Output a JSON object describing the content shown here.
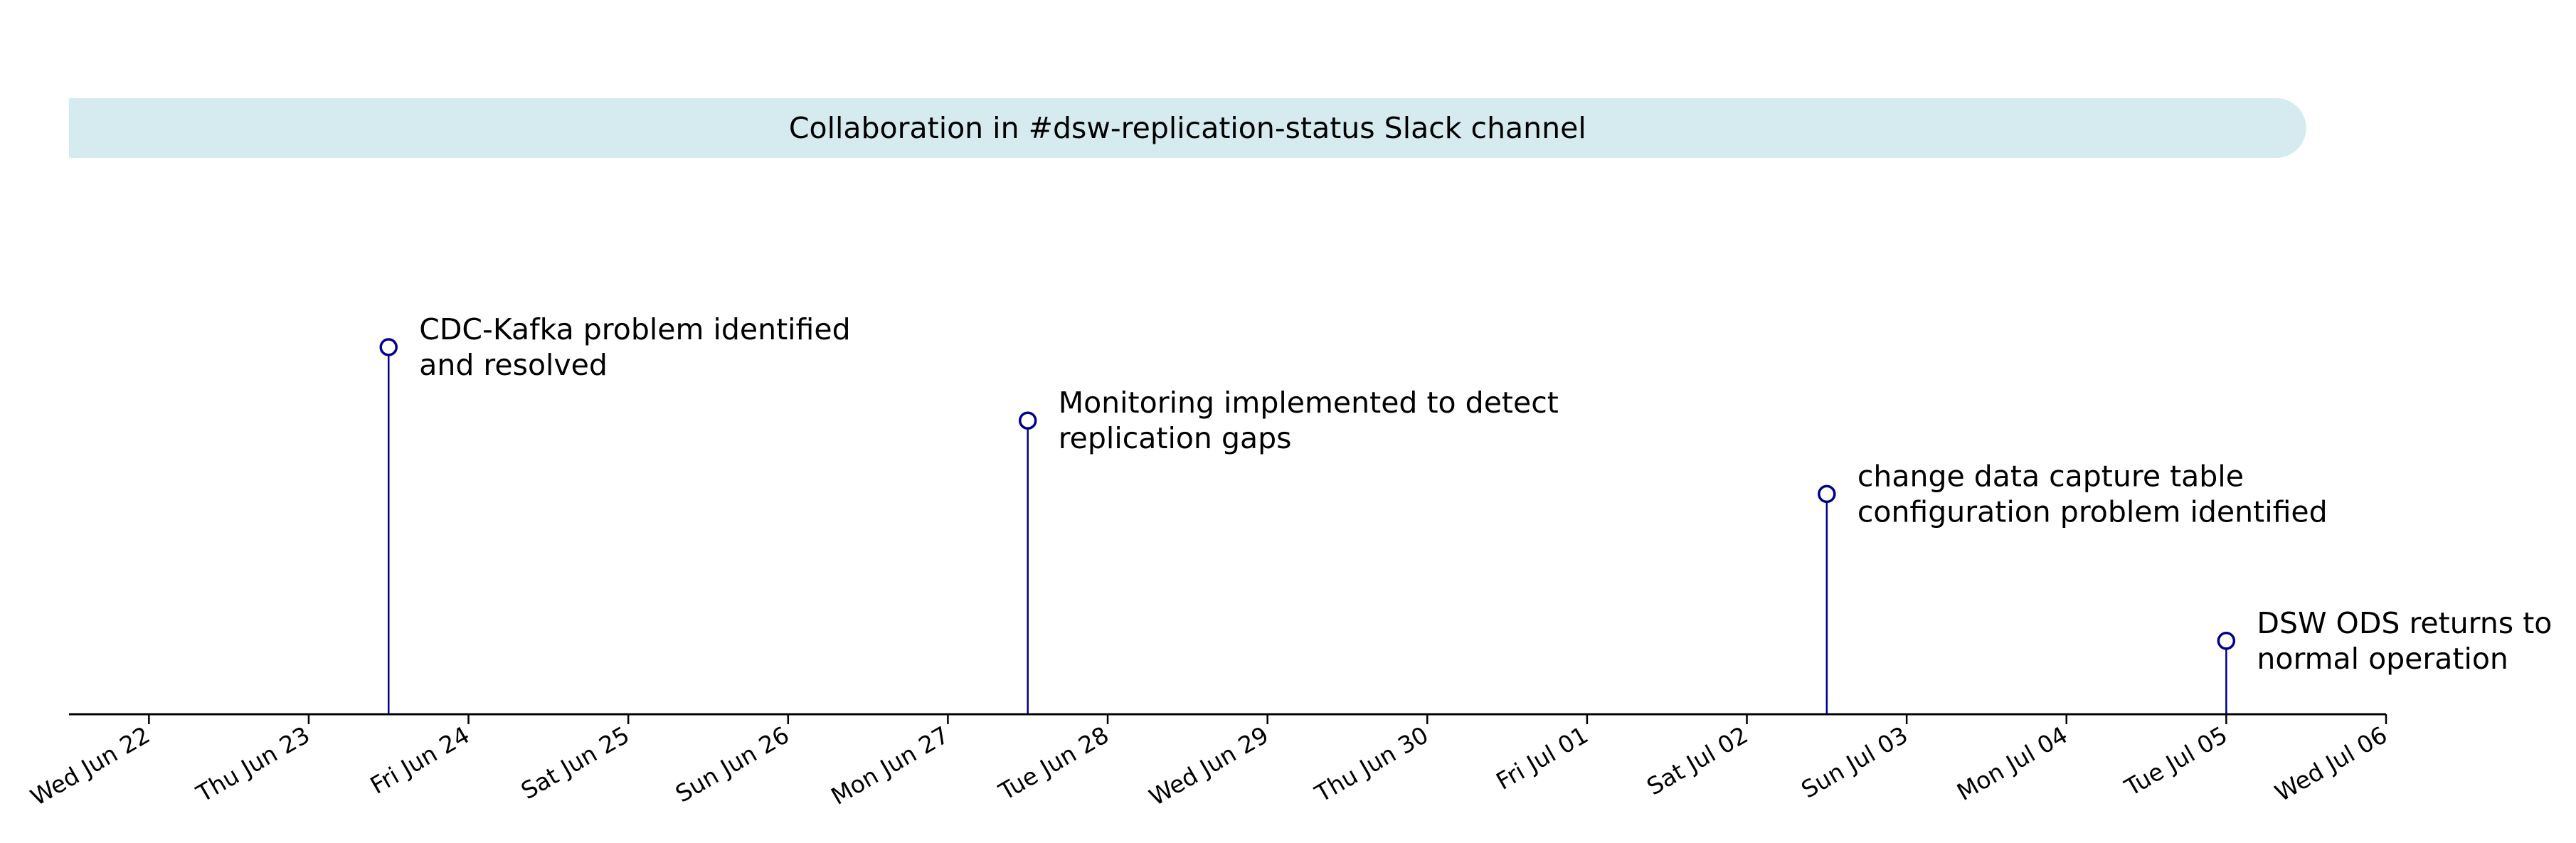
{
  "chart_data": {
    "type": "timeline",
    "x_ticks": [
      "Wed Jun 22",
      "Thu Jun 23",
      "Fri Jun 24",
      "Sat Jun 25",
      "Sun Jun 26",
      "Mon Jun 27",
      "Tue Jun 28",
      "Wed Jun 29",
      "Thu Jun 30",
      "Fri Jul 01",
      "Sat Jul 02",
      "Sun Jul 03",
      "Mon Jul 04",
      "Tue Jul 05",
      "Wed Jul 06"
    ],
    "xlim": [
      "2022-06-21T12:00",
      "2022-07-06T00:00"
    ],
    "span": {
      "label": "Collaboration in #dsw-replication-status Slack channel",
      "start": "2022-06-21T12:00",
      "end": "2022-07-05T12:00",
      "color": "#d6ebf0"
    },
    "events": [
      {
        "date": "2022-06-23T12:00",
        "lines": [
          "CDC-Kafka problem identified",
          "and resolved"
        ],
        "level": 4
      },
      {
        "date": "2022-06-27T12:00",
        "lines": [
          "Monitoring implemented to detect",
          "replication gaps"
        ],
        "level": 3.2
      },
      {
        "date": "2022-07-02T12:00",
        "lines": [
          "change data capture table",
          "configuration problem identified"
        ],
        "level": 2.4
      },
      {
        "date": "2022-07-05T00:00",
        "lines": [
          "DSW ODS returns to",
          "normal operation"
        ],
        "level": 0.8
      }
    ],
    "stem_color": "#00008b",
    "marker_face": "#ffffff",
    "axis_color": "#000000",
    "grid": false
  }
}
